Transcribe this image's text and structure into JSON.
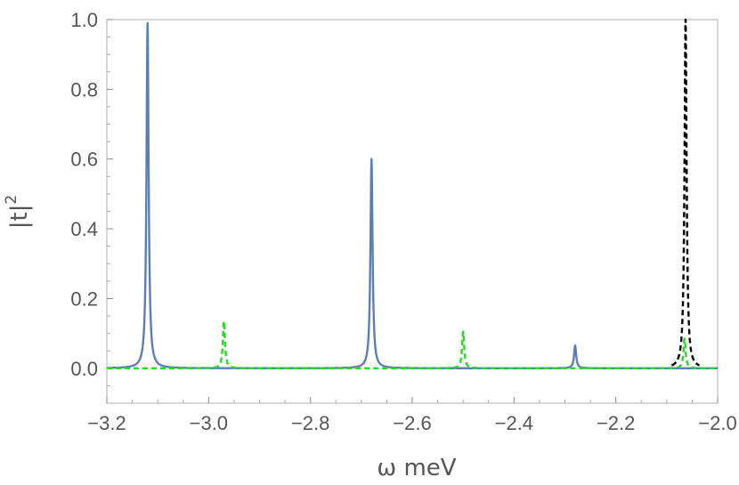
{
  "chart_data": {
    "type": "line",
    "xlabel": "ω meV",
    "ylabel": "|t|",
    "ylabel_superscript": "2",
    "xlim": [
      -3.2,
      -2.0
    ],
    "ylim": [
      -0.1,
      1.0
    ],
    "x_ticks": [
      -3.2,
      -3.0,
      -2.8,
      -2.6,
      -2.4,
      -2.2,
      -2.0
    ],
    "x_tick_labels": [
      "−3.2",
      "−3.0",
      "−2.8",
      "−2.6",
      "−2.4",
      "−2.2",
      "−2.0"
    ],
    "y_ticks": [
      0.0,
      0.2,
      0.4,
      0.6,
      0.8,
      1.0
    ],
    "y_tick_labels": [
      "0.0",
      "0.2",
      "0.4",
      "0.6",
      "0.8",
      "1.0"
    ],
    "grid": false,
    "frame": true,
    "series": [
      {
        "color": "#5b7fb5",
        "style": "solid",
        "peaks": [
          {
            "x": -3.12,
            "y": 0.99
          },
          {
            "x": -2.68,
            "y": 0.6
          },
          {
            "x": -2.28,
            "y": 0.065
          }
        ]
      },
      {
        "color": "#22dd22",
        "style": "dashed",
        "peaks": [
          {
            "x": -2.97,
            "y": 0.135
          },
          {
            "x": -2.5,
            "y": 0.105
          },
          {
            "x": -2.065,
            "y": 0.085
          }
        ]
      },
      {
        "color": "#000000",
        "style": "dashed",
        "peaks": [
          {
            "x": -2.063,
            "y": 1.0
          }
        ]
      }
    ]
  }
}
